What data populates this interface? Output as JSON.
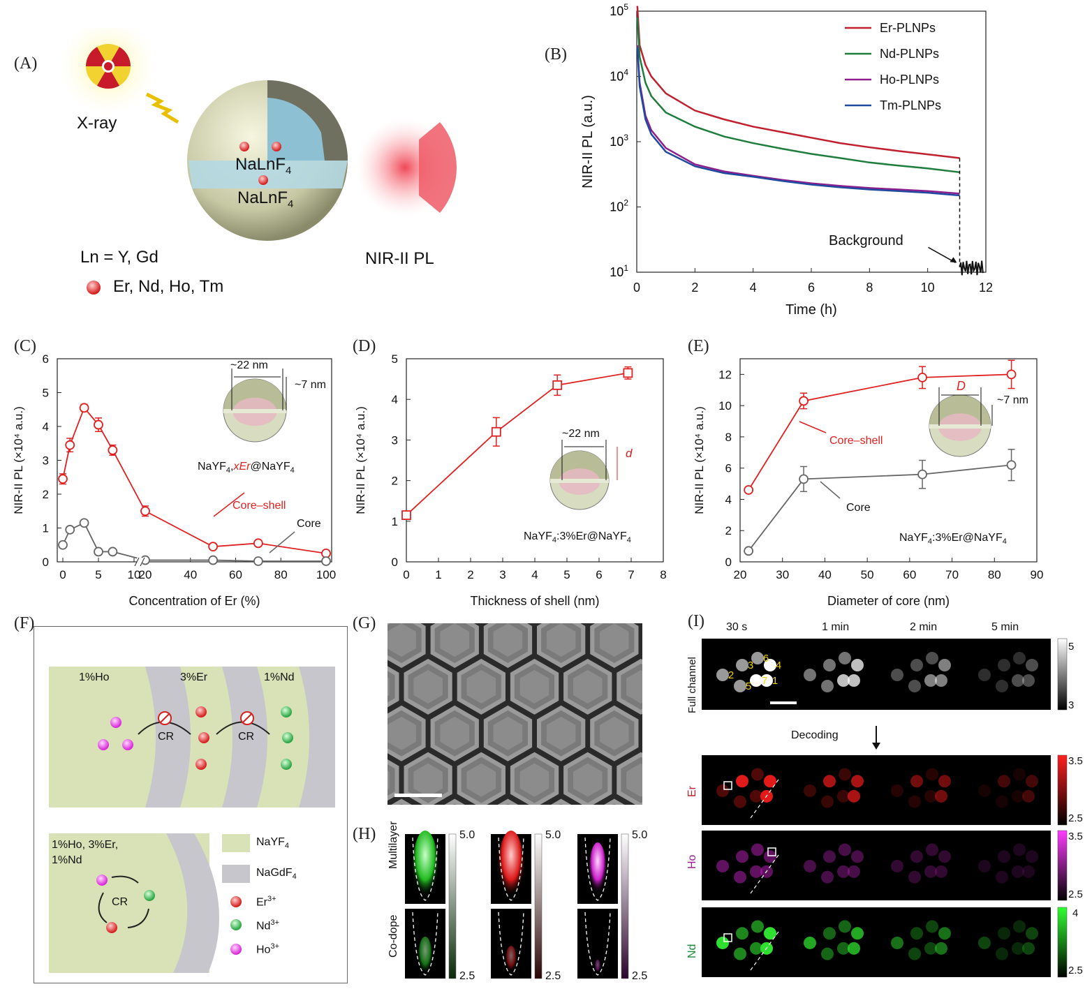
{
  "panels": {
    "A": {
      "label": "(A)",
      "xray_label": "X-ray",
      "core_label": "NaLnF",
      "core_sub": "4",
      "shell_label": "NaLnF",
      "shell_sub": "4",
      "nir_label": "NIR-II PL",
      "ln_text": "Ln = Y, Gd",
      "dopant_text": "Er, Nd, Ho, Tm"
    },
    "B": {
      "label": "(B)",
      "background_label": "Background"
    },
    "C": {
      "label": "(C)",
      "inset_d1": "~22 nm",
      "inset_d2": "~7 nm",
      "formula_pre": "NaYF",
      "formula_sub1": "4",
      "formula_mid": ",",
      "formula_red": "xEr",
      "formula_post": "@NaYF",
      "formula_sub2": "4",
      "core_shell": "Core–shell",
      "core": "Core"
    },
    "D": {
      "label": "(D)",
      "inset_d1": "~22 nm",
      "inset_d2": "d",
      "formula": "NaYF",
      "formula_sub1": "4",
      "formula_post": ":3%Er@NaYF",
      "formula_sub2": "4"
    },
    "E": {
      "label": "(E)",
      "inset_d1": "D",
      "inset_d2": "~7 nm",
      "core_shell": "Core–shell",
      "core": "Core",
      "formula": "NaYF",
      "formula_sub1": "4",
      "formula_post": ":3%Er@NaYF",
      "formula_sub2": "4"
    },
    "F": {
      "label": "(F)",
      "layer1": "1%Ho",
      "layer2": "3%Er",
      "layer3": "1%Nd",
      "cr": "CR",
      "codope": [
        "1%Ho, 3%Er,",
        "1%Nd"
      ],
      "legend": [
        {
          "name": "NaYF",
          "sub": "4",
          "color": "#d9e2b7"
        },
        {
          "name": "NaGdF",
          "sub": "4",
          "color": "#c6c6cc"
        },
        {
          "name": "Er",
          "sup": "3+",
          "color": "#d83a3a"
        },
        {
          "name": "Nd",
          "sup": "3+",
          "color": "#3cbb55"
        },
        {
          "name": "Ho",
          "sup": "3+",
          "color": "#e33ee3"
        }
      ]
    },
    "G": {
      "label": "(G)"
    },
    "H": {
      "label": "(H)",
      "row1": "Multilayer",
      "row2": "Co-dope",
      "scale_top": "5.0",
      "scale_bottom": "2.5"
    },
    "I": {
      "label": "(I)",
      "times": [
        "30 s",
        "1 min",
        "2 min",
        "5 min"
      ],
      "channels": [
        "Full channel",
        "Er",
        "Ho",
        "Nd"
      ],
      "decoding": "Decoding",
      "spot_numbers": [
        "1",
        "2",
        "3",
        "4",
        "5",
        "6",
        "7"
      ],
      "scales": [
        [
          "5",
          "3"
        ],
        [
          "3.5",
          "2.5"
        ],
        [
          "3.5",
          "2.5"
        ],
        [
          "4",
          "2.5"
        ]
      ]
    }
  },
  "chart_data": [
    {
      "panel": "B",
      "type": "line",
      "xlabel": "Time (h)",
      "ylabel": "NIR-II PL (a.u.)",
      "xlim": [
        0,
        12
      ],
      "ylim": [
        10,
        100000
      ],
      "yscale": "log",
      "xticks": [
        "0",
        "2",
        "4",
        "6",
        "8",
        "10",
        "12"
      ],
      "yticks": [
        "10^1",
        "10^2",
        "10^3",
        "10^4",
        "10^5"
      ],
      "legend_position": "top-right",
      "series": [
        {
          "name": "Er-PLNPs",
          "color": "#c0202e",
          "x": [
            0.02,
            0.1,
            0.3,
            0.5,
            1,
            2,
            3,
            4,
            5,
            6,
            7,
            8,
            9,
            10,
            11.1
          ],
          "values": [
            120000,
            30000,
            15000,
            10000,
            5500,
            3000,
            2200,
            1700,
            1400,
            1150,
            950,
            820,
            720,
            640,
            560
          ]
        },
        {
          "name": "Nd-PLNPs",
          "color": "#1e7d3c",
          "x": [
            0.02,
            0.1,
            0.3,
            0.5,
            1,
            2,
            3,
            4,
            5,
            6,
            7,
            8,
            9,
            10,
            11.1
          ],
          "values": [
            80000,
            20000,
            8000,
            5000,
            2800,
            1700,
            1200,
            950,
            780,
            650,
            560,
            480,
            430,
            390,
            340
          ]
        },
        {
          "name": "Ho-PLNPs",
          "color": "#8e1e8e",
          "x": [
            0.02,
            0.1,
            0.3,
            0.5,
            1,
            2,
            3,
            4,
            5,
            6,
            7,
            8,
            9,
            10,
            11.1
          ],
          "values": [
            30000,
            8000,
            2500,
            1500,
            800,
            450,
            350,
            300,
            260,
            230,
            210,
            195,
            185,
            175,
            160
          ]
        },
        {
          "name": "Tm-PLNPs",
          "color": "#1f4aa0",
          "x": [
            0.02,
            0.1,
            0.3,
            0.5,
            1,
            2,
            3,
            4,
            5,
            6,
            7,
            8,
            9,
            10,
            11.1
          ],
          "values": [
            28000,
            7000,
            2200,
            1300,
            700,
            420,
            330,
            290,
            250,
            220,
            200,
            185,
            175,
            165,
            150
          ]
        }
      ],
      "background_level": 12
    },
    {
      "panel": "C",
      "type": "line",
      "xlabel": "Concentration of Er (%)",
      "ylabel": "NIR-II PL (×10⁴ a.u.)",
      "xticks": [
        "0",
        "5",
        "10",
        "20",
        "40",
        "60",
        "80",
        "100"
      ],
      "yticks": [
        "0",
        "1",
        "2",
        "3",
        "4",
        "5",
        "6"
      ],
      "ylim": [
        0,
        6
      ],
      "series": [
        {
          "name": "Core–shell",
          "color": "#e02020",
          "x": [
            0,
            1,
            3,
            5,
            7,
            20,
            50,
            70,
            100
          ],
          "values": [
            2.45,
            3.45,
            4.55,
            4.05,
            3.3,
            1.5,
            0.45,
            0.55,
            0.25
          ],
          "error": [
            0.15,
            0.2,
            0.1,
            0.2,
            0.15,
            0.15,
            0.05,
            0.05,
            0.05
          ]
        },
        {
          "name": "Core",
          "color": "#666666",
          "x": [
            0,
            1,
            3,
            5,
            7,
            20,
            50,
            70,
            100
          ],
          "values": [
            0.5,
            0.95,
            1.15,
            0.3,
            0.3,
            0.05,
            0.05,
            0.02,
            0.02
          ]
        }
      ]
    },
    {
      "panel": "D",
      "type": "line",
      "xlabel": "Thickness of shell (nm)",
      "ylabel": "NIR-II PL (×10⁴ a.u.)",
      "xlim": [
        0,
        8
      ],
      "ylim": [
        0,
        5
      ],
      "xticks": [
        "0",
        "1",
        "2",
        "3",
        "4",
        "5",
        "6",
        "7",
        "8"
      ],
      "yticks": [
        "0",
        "1",
        "2",
        "3",
        "4",
        "5"
      ],
      "series": [
        {
          "name": "Core–shell",
          "color": "#e02020",
          "x": [
            0,
            2.8,
            4.7,
            6.9
          ],
          "values": [
            1.15,
            3.2,
            4.35,
            4.65
          ],
          "error": [
            0.1,
            0.35,
            0.25,
            0.15
          ]
        }
      ]
    },
    {
      "panel": "E",
      "type": "line",
      "xlabel": "Diameter of core (nm)",
      "ylabel": "NIR-II PL (×10⁴ a.u.)",
      "xlim": [
        20,
        90
      ],
      "ylim": [
        0,
        13
      ],
      "xticks": [
        "20",
        "30",
        "40",
        "50",
        "60",
        "70",
        "80",
        "90"
      ],
      "yticks": [
        "0",
        "2",
        "4",
        "6",
        "8",
        "10",
        "12"
      ],
      "series": [
        {
          "name": "Core–shell",
          "color": "#e02020",
          "x": [
            22,
            35,
            63,
            84
          ],
          "values": [
            4.6,
            10.3,
            11.8,
            12.0
          ],
          "error": [
            0.1,
            0.5,
            0.7,
            0.9
          ]
        },
        {
          "name": "Core",
          "color": "#666666",
          "x": [
            22,
            35,
            63,
            84
          ],
          "values": [
            0.7,
            5.3,
            5.6,
            6.2
          ],
          "error": [
            0.1,
            0.8,
            0.9,
            1.0
          ]
        }
      ]
    }
  ]
}
